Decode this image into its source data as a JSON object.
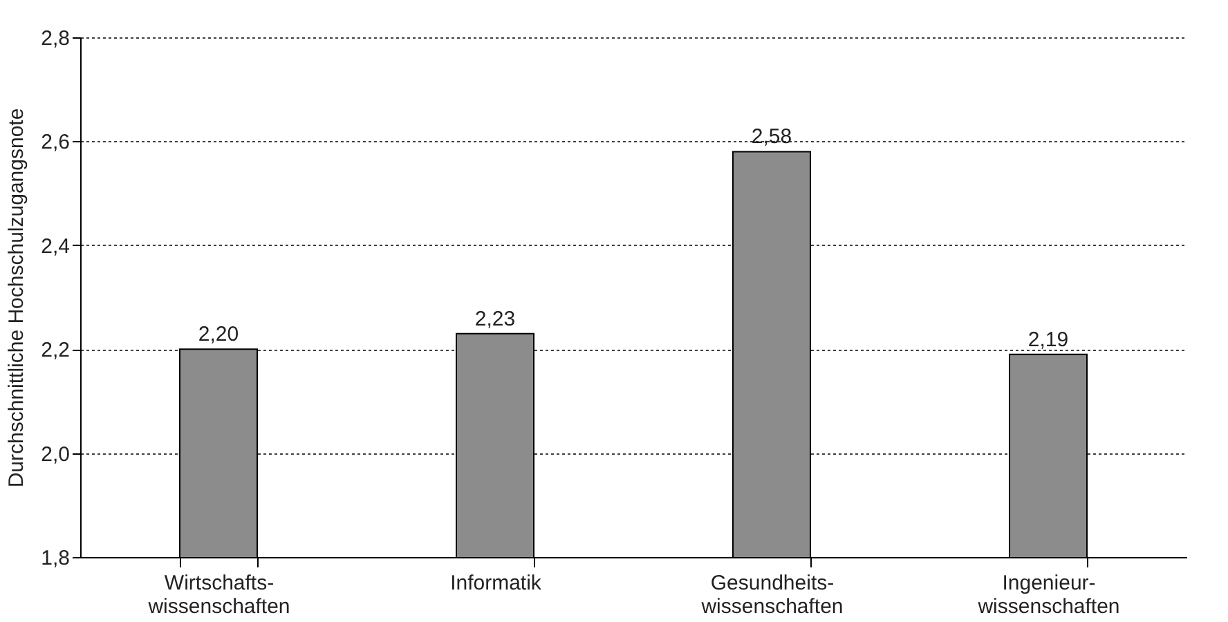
{
  "chart_data": {
    "type": "bar",
    "ylabel": "Durchschnittliche Hochschulzugangsnote",
    "categories": [
      "Wirtschafts-\nwissenschaften",
      "Informatik",
      "Gesundheits-\nwissenschaften",
      "Ingenieur-\nwissenschaften"
    ],
    "values": [
      2.2,
      2.23,
      2.58,
      2.19
    ],
    "value_labels": [
      "2,20",
      "2,23",
      "2,58",
      "2,19"
    ],
    "color": "#8c8c8c",
    "ylim": [
      1.8,
      2.8
    ],
    "yticks": [
      {
        "value": 1.8,
        "label": "1,8"
      },
      {
        "value": 2.0,
        "label": "2,0"
      },
      {
        "value": 2.2,
        "label": "2,2"
      },
      {
        "value": 2.4,
        "label": "2,4"
      },
      {
        "value": 2.6,
        "label": "2,6"
      },
      {
        "value": 2.8,
        "label": "2,8"
      }
    ],
    "grid": "y"
  }
}
